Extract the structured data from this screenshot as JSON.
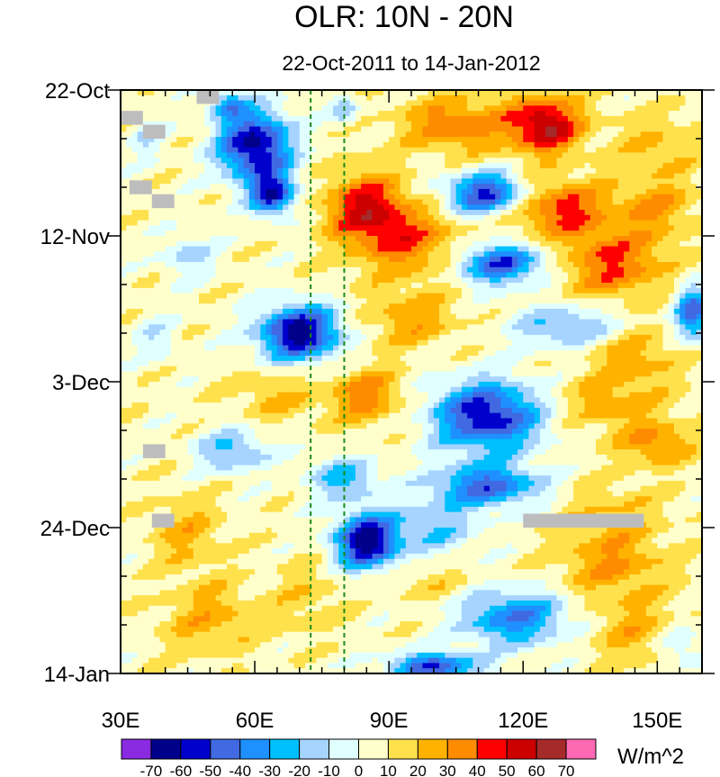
{
  "chart_data": {
    "type": "heatmap",
    "title": "OLR: 10N - 20N",
    "subtitle": "22-Oct-2011 to 14-Jan-2012",
    "x_axis": {
      "range": [
        30,
        160
      ],
      "ticks": [
        30,
        60,
        90,
        120,
        150
      ],
      "tick_labels": [
        "30E",
        "60E",
        "90E",
        "120E",
        "150E"
      ],
      "minor_step": 5
    },
    "y_axis": {
      "range_days": [
        0,
        84
      ],
      "ticks": [
        0,
        21,
        42,
        63,
        84
      ],
      "tick_labels": [
        "22-Oct",
        "12-Nov",
        "3-Dec",
        "24-Dec",
        "14-Jan"
      ],
      "minor_step_days": 7,
      "direction": "time increases downward"
    },
    "reference_lines_lon": [
      72.5,
      80
    ],
    "colorbar": {
      "units": "W/m^2",
      "levels": [
        -70,
        -60,
        -50,
        -40,
        -30,
        -20,
        -10,
        0,
        10,
        20,
        30,
        40,
        50,
        60,
        70
      ],
      "level_labels": [
        "-70",
        "-60",
        "-50",
        "-40",
        "-30",
        "-20",
        "-10",
        "0",
        "10",
        "20",
        "30",
        "40",
        "50",
        "60",
        "70"
      ],
      "colors": [
        "#8a2be2",
        "#00008b",
        "#0000cd",
        "#4169e1",
        "#1e90ff",
        "#00bfff",
        "#a6d4ff",
        "#e0ffff",
        "#ffffcc",
        "#ffe14d",
        "#ffb300",
        "#ff8c00",
        "#ff0000",
        "#cd0000",
        "#a52a2a",
        "#ff69b4"
      ]
    },
    "missing_color": "#bdbdbd",
    "missing_blocks": [
      {
        "lon": [
          30,
          35
        ],
        "day": [
          3,
          5
        ]
      },
      {
        "lon": [
          35,
          40
        ],
        "day": [
          5,
          7
        ]
      },
      {
        "lon": [
          47,
          52
        ],
        "day": [
          0,
          2
        ]
      },
      {
        "lon": [
          32,
          37
        ],
        "day": [
          13,
          15
        ]
      },
      {
        "lon": [
          37,
          42
        ],
        "day": [
          15,
          17
        ]
      },
      {
        "lon": [
          35,
          40
        ],
        "day": [
          51,
          53
        ]
      },
      {
        "lon": [
          37,
          42
        ],
        "day": [
          61,
          63
        ]
      },
      {
        "lon": [
          120,
          147
        ],
        "day": [
          61,
          63
        ]
      }
    ],
    "anomaly_features": [
      {
        "lon": 60,
        "day": 8,
        "value": -72,
        "lon_radius": 8,
        "day_radius": 5
      },
      {
        "lon": 64,
        "day": 15,
        "value": -58,
        "lon_radius": 5,
        "day_radius": 3
      },
      {
        "lon": 54,
        "day": 2,
        "value": -35,
        "lon_radius": 4,
        "day_radius": 2
      },
      {
        "lon": 36,
        "day": 7,
        "value": -15,
        "lon_radius": 4,
        "day_radius": 3
      },
      {
        "lon": 80,
        "day": 3,
        "value": -25,
        "lon_radius": 3,
        "day_radius": 2
      },
      {
        "lon": 105,
        "day": 5,
        "value": 32,
        "lon_radius": 12,
        "day_radius": 4
      },
      {
        "lon": 125,
        "day": 5,
        "value": 55,
        "lon_radius": 8,
        "day_radius": 4
      },
      {
        "lon": 150,
        "day": 8,
        "value": 15,
        "lon_radius": 10,
        "day_radius": 5
      },
      {
        "lon": 112,
        "day": 15,
        "value": -62,
        "lon_radius": 9,
        "day_radius": 3
      },
      {
        "lon": 85,
        "day": 17,
        "value": 45,
        "lon_radius": 9,
        "day_radius": 5
      },
      {
        "lon": 128,
        "day": 17,
        "value": 38,
        "lon_radius": 12,
        "day_radius": 4
      },
      {
        "lon": 150,
        "day": 17,
        "value": 22,
        "lon_radius": 8,
        "day_radius": 4
      },
      {
        "lon": 95,
        "day": 22,
        "value": 30,
        "lon_radius": 12,
        "day_radius": 5
      },
      {
        "lon": 140,
        "day": 25,
        "value": 35,
        "lon_radius": 12,
        "day_radius": 5
      },
      {
        "lon": 115,
        "day": 25,
        "value": -55,
        "lon_radius": 10,
        "day_radius": 3
      },
      {
        "lon": 45,
        "day": 24,
        "value": -20,
        "lon_radius": 6,
        "day_radius": 3
      },
      {
        "lon": 158,
        "day": 32,
        "value": -50,
        "lon_radius": 4,
        "day_radius": 4
      },
      {
        "lon": 70,
        "day": 35,
        "value": -72,
        "lon_radius": 9,
        "day_radius": 4
      },
      {
        "lon": 95,
        "day": 33,
        "value": 22,
        "lon_radius": 10,
        "day_radius": 4
      },
      {
        "lon": 130,
        "day": 34,
        "value": -30,
        "lon_radius": 12,
        "day_radius": 3
      },
      {
        "lon": 145,
        "day": 38,
        "value": 20,
        "lon_radius": 10,
        "day_radius": 4
      },
      {
        "lon": 38,
        "day": 36,
        "value": -15,
        "lon_radius": 5,
        "day_radius": 3
      },
      {
        "lon": 85,
        "day": 44,
        "value": 30,
        "lon_radius": 8,
        "day_radius": 4
      },
      {
        "lon": 65,
        "day": 44,
        "value": 15,
        "lon_radius": 10,
        "day_radius": 4
      },
      {
        "lon": 112,
        "day": 47,
        "value": -65,
        "lon_radius": 12,
        "day_radius": 5
      },
      {
        "lon": 140,
        "day": 45,
        "value": 20,
        "lon_radius": 12,
        "day_radius": 4
      },
      {
        "lon": 150,
        "day": 51,
        "value": 28,
        "lon_radius": 8,
        "day_radius": 3
      },
      {
        "lon": 55,
        "day": 52,
        "value": -30,
        "lon_radius": 8,
        "day_radius": 3
      },
      {
        "lon": 80,
        "day": 56,
        "value": -30,
        "lon_radius": 8,
        "day_radius": 3
      },
      {
        "lon": 112,
        "day": 57,
        "value": -50,
        "lon_radius": 12,
        "day_radius": 3
      },
      {
        "lon": 85,
        "day": 65,
        "value": -72,
        "lon_radius": 7,
        "day_radius": 4
      },
      {
        "lon": 100,
        "day": 63,
        "value": -25,
        "lon_radius": 10,
        "day_radius": 4
      },
      {
        "lon": 140,
        "day": 60,
        "value": 12,
        "lon_radius": 12,
        "day_radius": 4
      },
      {
        "lon": 45,
        "day": 64,
        "value": 18,
        "lon_radius": 8,
        "day_radius": 5
      },
      {
        "lon": 140,
        "day": 68,
        "value": 25,
        "lon_radius": 12,
        "day_radius": 5
      },
      {
        "lon": 118,
        "day": 76,
        "value": -45,
        "lon_radius": 12,
        "day_radius": 4
      },
      {
        "lon": 100,
        "day": 83,
        "value": -55,
        "lon_radius": 10,
        "day_radius": 2
      },
      {
        "lon": 50,
        "day": 76,
        "value": 20,
        "lon_radius": 10,
        "day_radius": 5
      },
      {
        "lon": 145,
        "day": 78,
        "value": 18,
        "lon_radius": 10,
        "day_radius": 5
      },
      {
        "lon": 155,
        "day": 80,
        "value": -20,
        "lon_radius": 5,
        "day_radius": 3
      },
      {
        "lon": 72,
        "day": 73,
        "value": 12,
        "lon_radius": 8,
        "day_radius": 5
      },
      {
        "lon": 100,
        "day": 71,
        "value": 10,
        "lon_radius": 10,
        "day_radius": 3
      }
    ]
  }
}
